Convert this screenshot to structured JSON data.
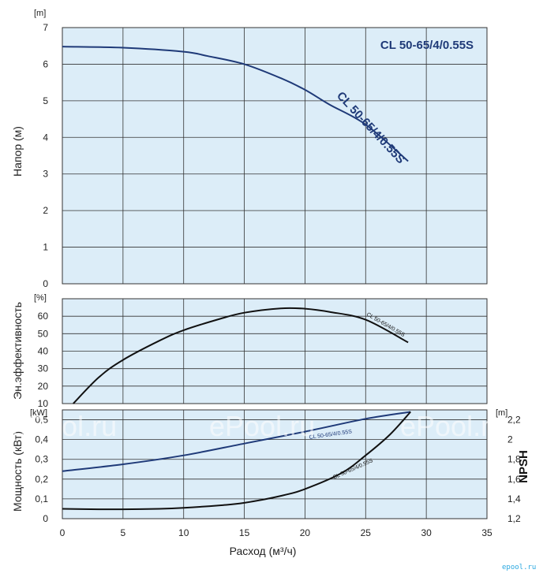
{
  "chart_data": {
    "type": "line",
    "model_title": "CL 50-65/4/0.55S",
    "x_axis": {
      "label": "Расход (м³/ч)",
      "range": [
        0,
        35
      ],
      "ticks": [
        "0",
        "5",
        "10",
        "15",
        "20",
        "25",
        "30",
        "35"
      ]
    },
    "panels": [
      {
        "id": "head",
        "unit": "[m]",
        "ylabel": "Напор (м)",
        "ylim": [
          0,
          7
        ],
        "yticks": [
          "0",
          "1",
          "2",
          "3",
          "4",
          "5",
          "6",
          "7"
        ],
        "series": [
          {
            "name": "CL 50-65/4/0.55S",
            "color": "#1f3a78",
            "x": [
              0,
              5,
              10,
              12,
              15,
              18,
              20,
              22,
              25,
              28.5
            ],
            "y": [
              6.48,
              6.45,
              6.34,
              6.22,
              6.0,
              5.62,
              5.3,
              4.9,
              4.35,
              3.35
            ]
          }
        ]
      },
      {
        "id": "efficiency",
        "unit": "[%]",
        "ylabel": "Эн.эффективность",
        "ylim": [
          10,
          70
        ],
        "yticks": [
          "10",
          "20",
          "30",
          "40",
          "50",
          "60"
        ],
        "series": [
          {
            "name": "CL 50-65/4/0.55S",
            "color": "#111111",
            "x": [
              0.9,
              3,
              5,
              8,
              10,
              13,
              15,
              18,
              20,
              22,
              25,
              28.5
            ],
            "y": [
              10,
              25,
              35,
              46,
              52,
              58.5,
              62,
              64.5,
              64.3,
              62.5,
              58,
              45
            ]
          }
        ]
      },
      {
        "id": "power_npsh",
        "unit": "[kW]",
        "unit_right": "[m]",
        "ylabel": "Мощность (кВт)",
        "ylabel_right": "NPSH",
        "ylim": [
          0,
          0.55
        ],
        "yticks": [
          "0",
          "0,1",
          "0,2",
          "0,3",
          "0,4",
          "0,5"
        ],
        "ylim_right": [
          1.2,
          2.3
        ],
        "yticks_right": [
          "1,2",
          "1,4",
          "1,6",
          "1,8",
          "2",
          "2,2"
        ],
        "series": [
          {
            "name": "CL 50-65/4/0.55S",
            "axis": "left",
            "color": "#1f3a78",
            "x": [
              0,
              5,
              10,
              15,
              20,
              25,
              28.7
            ],
            "y": [
              0.24,
              0.275,
              0.32,
              0.38,
              0.44,
              0.505,
              0.54
            ]
          },
          {
            "name": "CL 50-65/4/0.55S",
            "axis": "right",
            "color": "#111111",
            "x": [
              0,
              3,
              5,
              8,
              10,
              13,
              15,
              18,
              20,
              23,
              25,
              27,
              28.7
            ],
            "y": [
              1.3,
              1.295,
              1.295,
              1.3,
              1.31,
              1.335,
              1.36,
              1.43,
              1.5,
              1.66,
              1.84,
              2.05,
              2.28
            ]
          }
        ]
      }
    ],
    "grid": true,
    "background": "#dcedf8"
  },
  "watermark": "ePool.ru",
  "footer_brand": "epool.ru"
}
